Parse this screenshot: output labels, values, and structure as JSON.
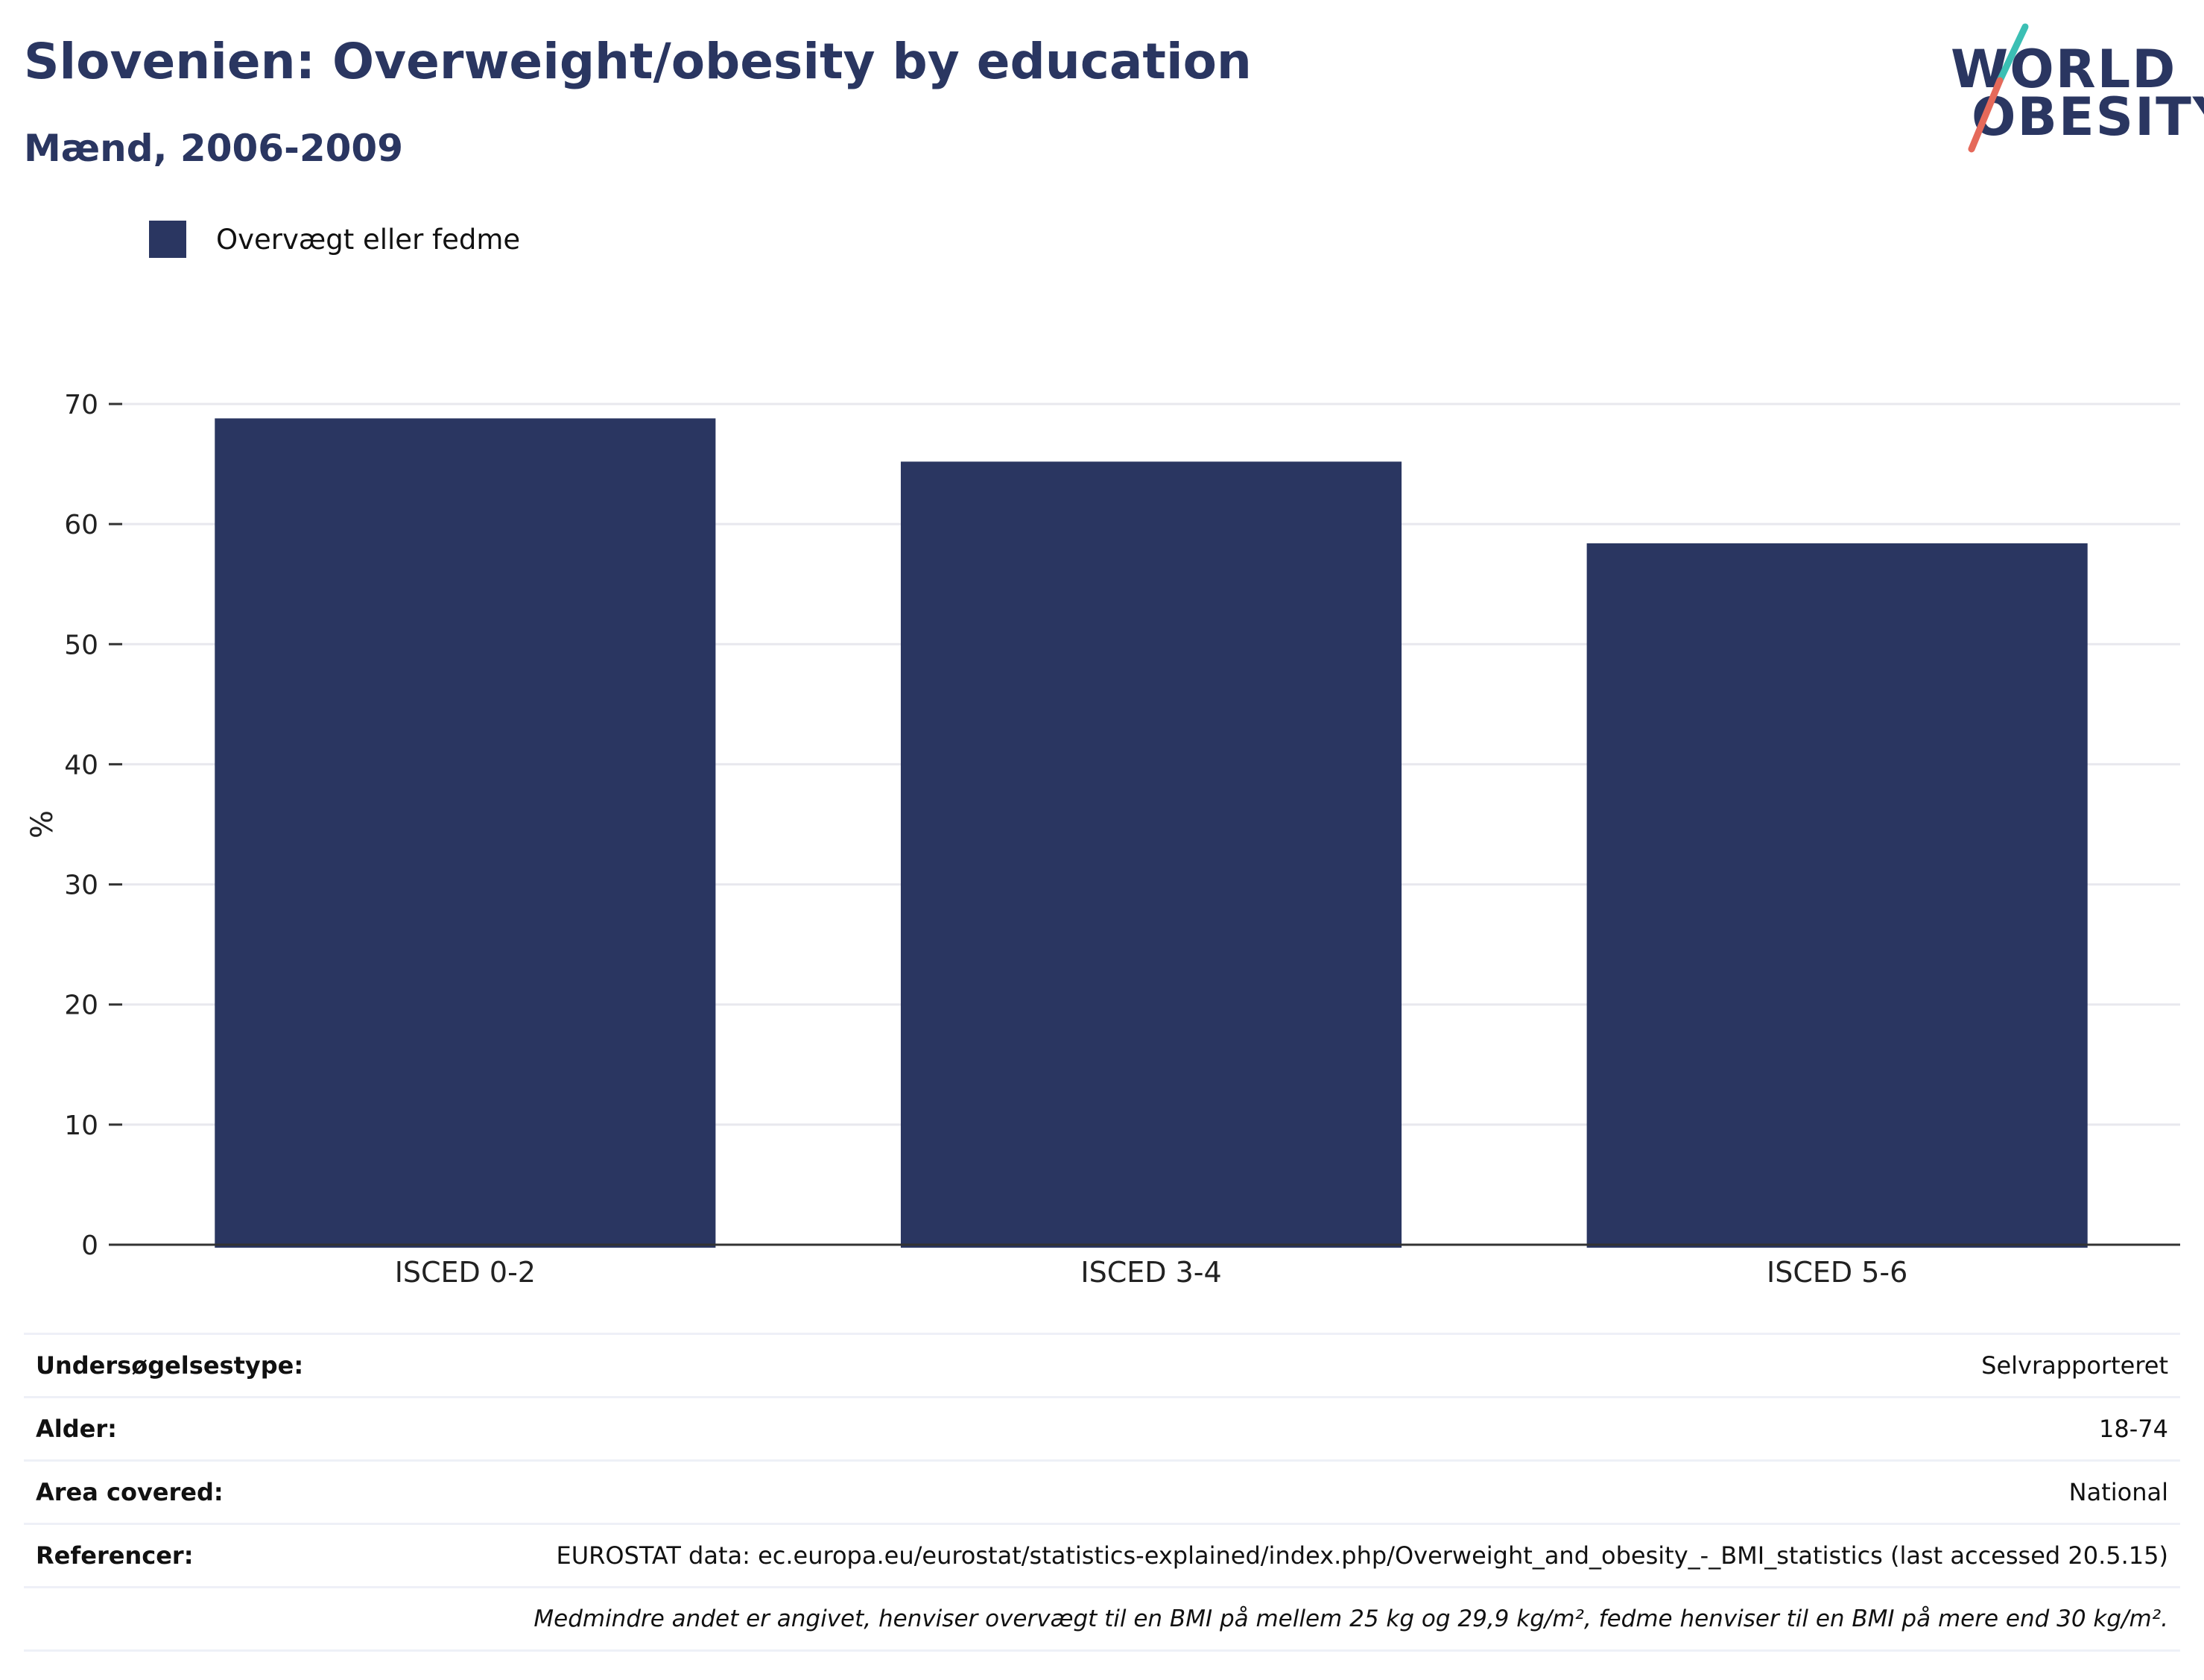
{
  "header": {
    "title": "Slovenien: Overweight/obesity by education",
    "subtitle": "Mænd, 2006-2009"
  },
  "logo": {
    "line1": "WORLD",
    "line2": "OBESITY",
    "colors": {
      "text": "#2a3661",
      "slash_top": "#3bbfb4",
      "slash_bottom": "#e5695a"
    }
  },
  "legend": {
    "label": "Overvægt eller fedme",
    "color": "#2a3661"
  },
  "chart_data": {
    "type": "bar",
    "categories": [
      "ISCED 0-2",
      "ISCED 3-4",
      "ISCED 5-6"
    ],
    "series": [
      {
        "name": "Overvægt eller fedme",
        "values": [
          68.8,
          65.2,
          58.4
        ],
        "color": "#2a3661"
      }
    ],
    "xlabel": "",
    "ylabel": "%",
    "ylim": [
      0,
      70
    ],
    "yticks": [
      0,
      10,
      20,
      30,
      40,
      50,
      60,
      70
    ],
    "grid": true,
    "legend_position": "top-left"
  },
  "info": {
    "rows": [
      {
        "key": "Undersøgelsestype:",
        "value": "Selvrapporteret"
      },
      {
        "key": "Alder:",
        "value": "18-74"
      },
      {
        "key": "Area covered:",
        "value": "National"
      },
      {
        "key": "Referencer:",
        "value": "EUROSTAT data: ec.europa.eu/eurostat/statistics-explained/index.php/Overweight_and_obesity_-_BMI_statistics (last accessed 20.5.15)"
      }
    ],
    "note": "Medmindre andet er angivet, henviser overvægt til en BMI på mellem 25 kg og 29,9 kg/m², fedme henviser til en BMI på mere end 30 kg/m²."
  }
}
